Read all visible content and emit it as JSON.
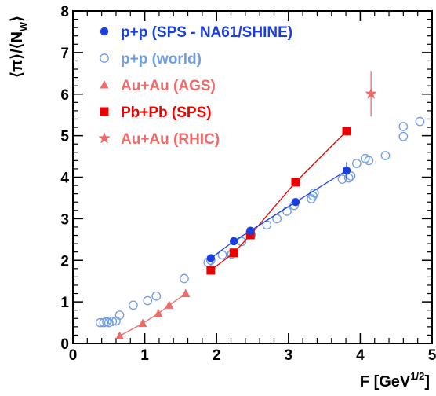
{
  "chart_data": {
    "type": "scatter",
    "title": "",
    "xlabel": {
      "main": "F [GeV",
      "sup": "1/2",
      "close": "]"
    },
    "ylabel": {
      "main": "⟨π⟩/⟨N",
      "sub": "W",
      "close": "⟩"
    },
    "xlim": [
      0,
      5
    ],
    "ylim": [
      0,
      8
    ],
    "x_ticks": [
      "0",
      "1",
      "2",
      "3",
      "4",
      "5"
    ],
    "y_ticks": [
      "0",
      "1",
      "2",
      "3",
      "4",
      "5",
      "6",
      "7",
      "8"
    ],
    "legend_position": "top-left",
    "series": [
      {
        "name": "p+p (SPS - NA61/SHINE)",
        "marker": "filled-circle",
        "color": "#1a3fe0",
        "connected": true,
        "x": [
          1.92,
          2.24,
          2.47,
          3.1,
          3.81
        ],
        "y": [
          2.05,
          2.46,
          2.71,
          3.4,
          4.16
        ],
        "err": [
          0.05,
          0.05,
          0.06,
          0.08,
          0.2
        ]
      },
      {
        "name": "p+p (world)",
        "marker": "open-circle",
        "color": "#6f9de4",
        "connected": false,
        "x": [
          0.38,
          0.43,
          0.47,
          0.5,
          0.55,
          0.6,
          0.65,
          0.84,
          1.04,
          1.16,
          1.55,
          1.88,
          1.92,
          2.08,
          2.21,
          2.35,
          2.48,
          2.7,
          2.84,
          2.98,
          3.08,
          3.32,
          3.34,
          3.36,
          3.75,
          3.84,
          3.87,
          3.95,
          4.07,
          4.12,
          4.35,
          4.6,
          4.6,
          4.83
        ],
        "y": [
          0.5,
          0.5,
          0.52,
          0.5,
          0.53,
          0.54,
          0.68,
          0.92,
          1.03,
          1.14,
          1.56,
          1.95,
          2.0,
          2.13,
          2.15,
          2.45,
          2.62,
          2.85,
          3.0,
          3.18,
          3.32,
          3.48,
          3.55,
          3.62,
          3.95,
          3.98,
          4.03,
          4.33,
          4.45,
          4.4,
          4.52,
          4.98,
          5.22,
          5.34
        ]
      },
      {
        "name": "Au+Au (AGS)",
        "marker": "triangle",
        "color": "#f06a6a",
        "connected": true,
        "x": [
          0.65,
          0.97,
          1.19,
          1.34,
          1.57
        ],
        "y": [
          0.18,
          0.48,
          0.72,
          0.92,
          1.2
        ]
      },
      {
        "name": "Pb+Pb (SPS)",
        "marker": "square",
        "color": "#ee0000",
        "connected": true,
        "x": [
          1.92,
          2.24,
          2.47,
          3.1,
          3.81
        ],
        "y": [
          1.76,
          2.18,
          2.61,
          3.88,
          5.11
        ]
      },
      {
        "name": "Au+Au (RHIC)",
        "marker": "star",
        "color": "#f06a6a",
        "connected": true,
        "x": [
          4.15
        ],
        "y": [
          6.01
        ],
        "err": [
          0.55
        ]
      }
    ]
  }
}
